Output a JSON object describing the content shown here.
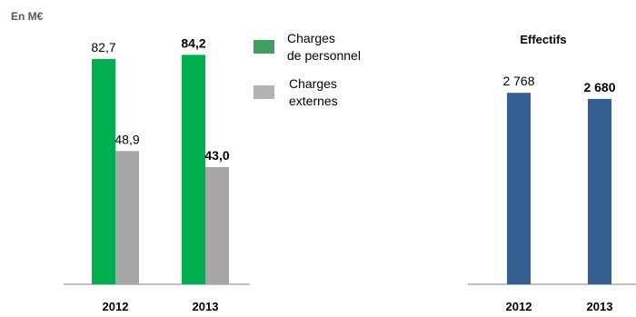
{
  "unit_label": "En M€",
  "legend": [
    {
      "lines": [
        "Charges",
        "de personnel"
      ],
      "color": "#3f9f60"
    },
    {
      "lines": [
        "Charges",
        "externes"
      ],
      "color": "#b2b2b2"
    }
  ],
  "chart_data": [
    {
      "type": "bar",
      "title": "",
      "categories": [
        "2012",
        "2013"
      ],
      "series": [
        {
          "name": "Charges de personnel",
          "values": [
            82.7,
            84.2
          ],
          "labels": [
            "82,7",
            "84,2"
          ],
          "color": "#00b050"
        },
        {
          "name": "Charges externes",
          "values": [
            48.9,
            43.0
          ],
          "labels": [
            "48,9",
            "43,0"
          ],
          "color": "#a6a6a6"
        }
      ],
      "bold_category": "2013",
      "ylim": [
        0,
        90
      ],
      "grid": false,
      "legend_position": "right"
    },
    {
      "type": "bar",
      "title": "Effectifs",
      "categories": [
        "2012",
        "2013"
      ],
      "series": [
        {
          "name": "",
          "values": [
            2768,
            2680
          ],
          "labels": [
            "2 768",
            "2 680"
          ],
          "color": "#365f91"
        }
      ],
      "bold_category": "2013",
      "ylim": [
        0,
        3100
      ],
      "grid": false
    }
  ]
}
